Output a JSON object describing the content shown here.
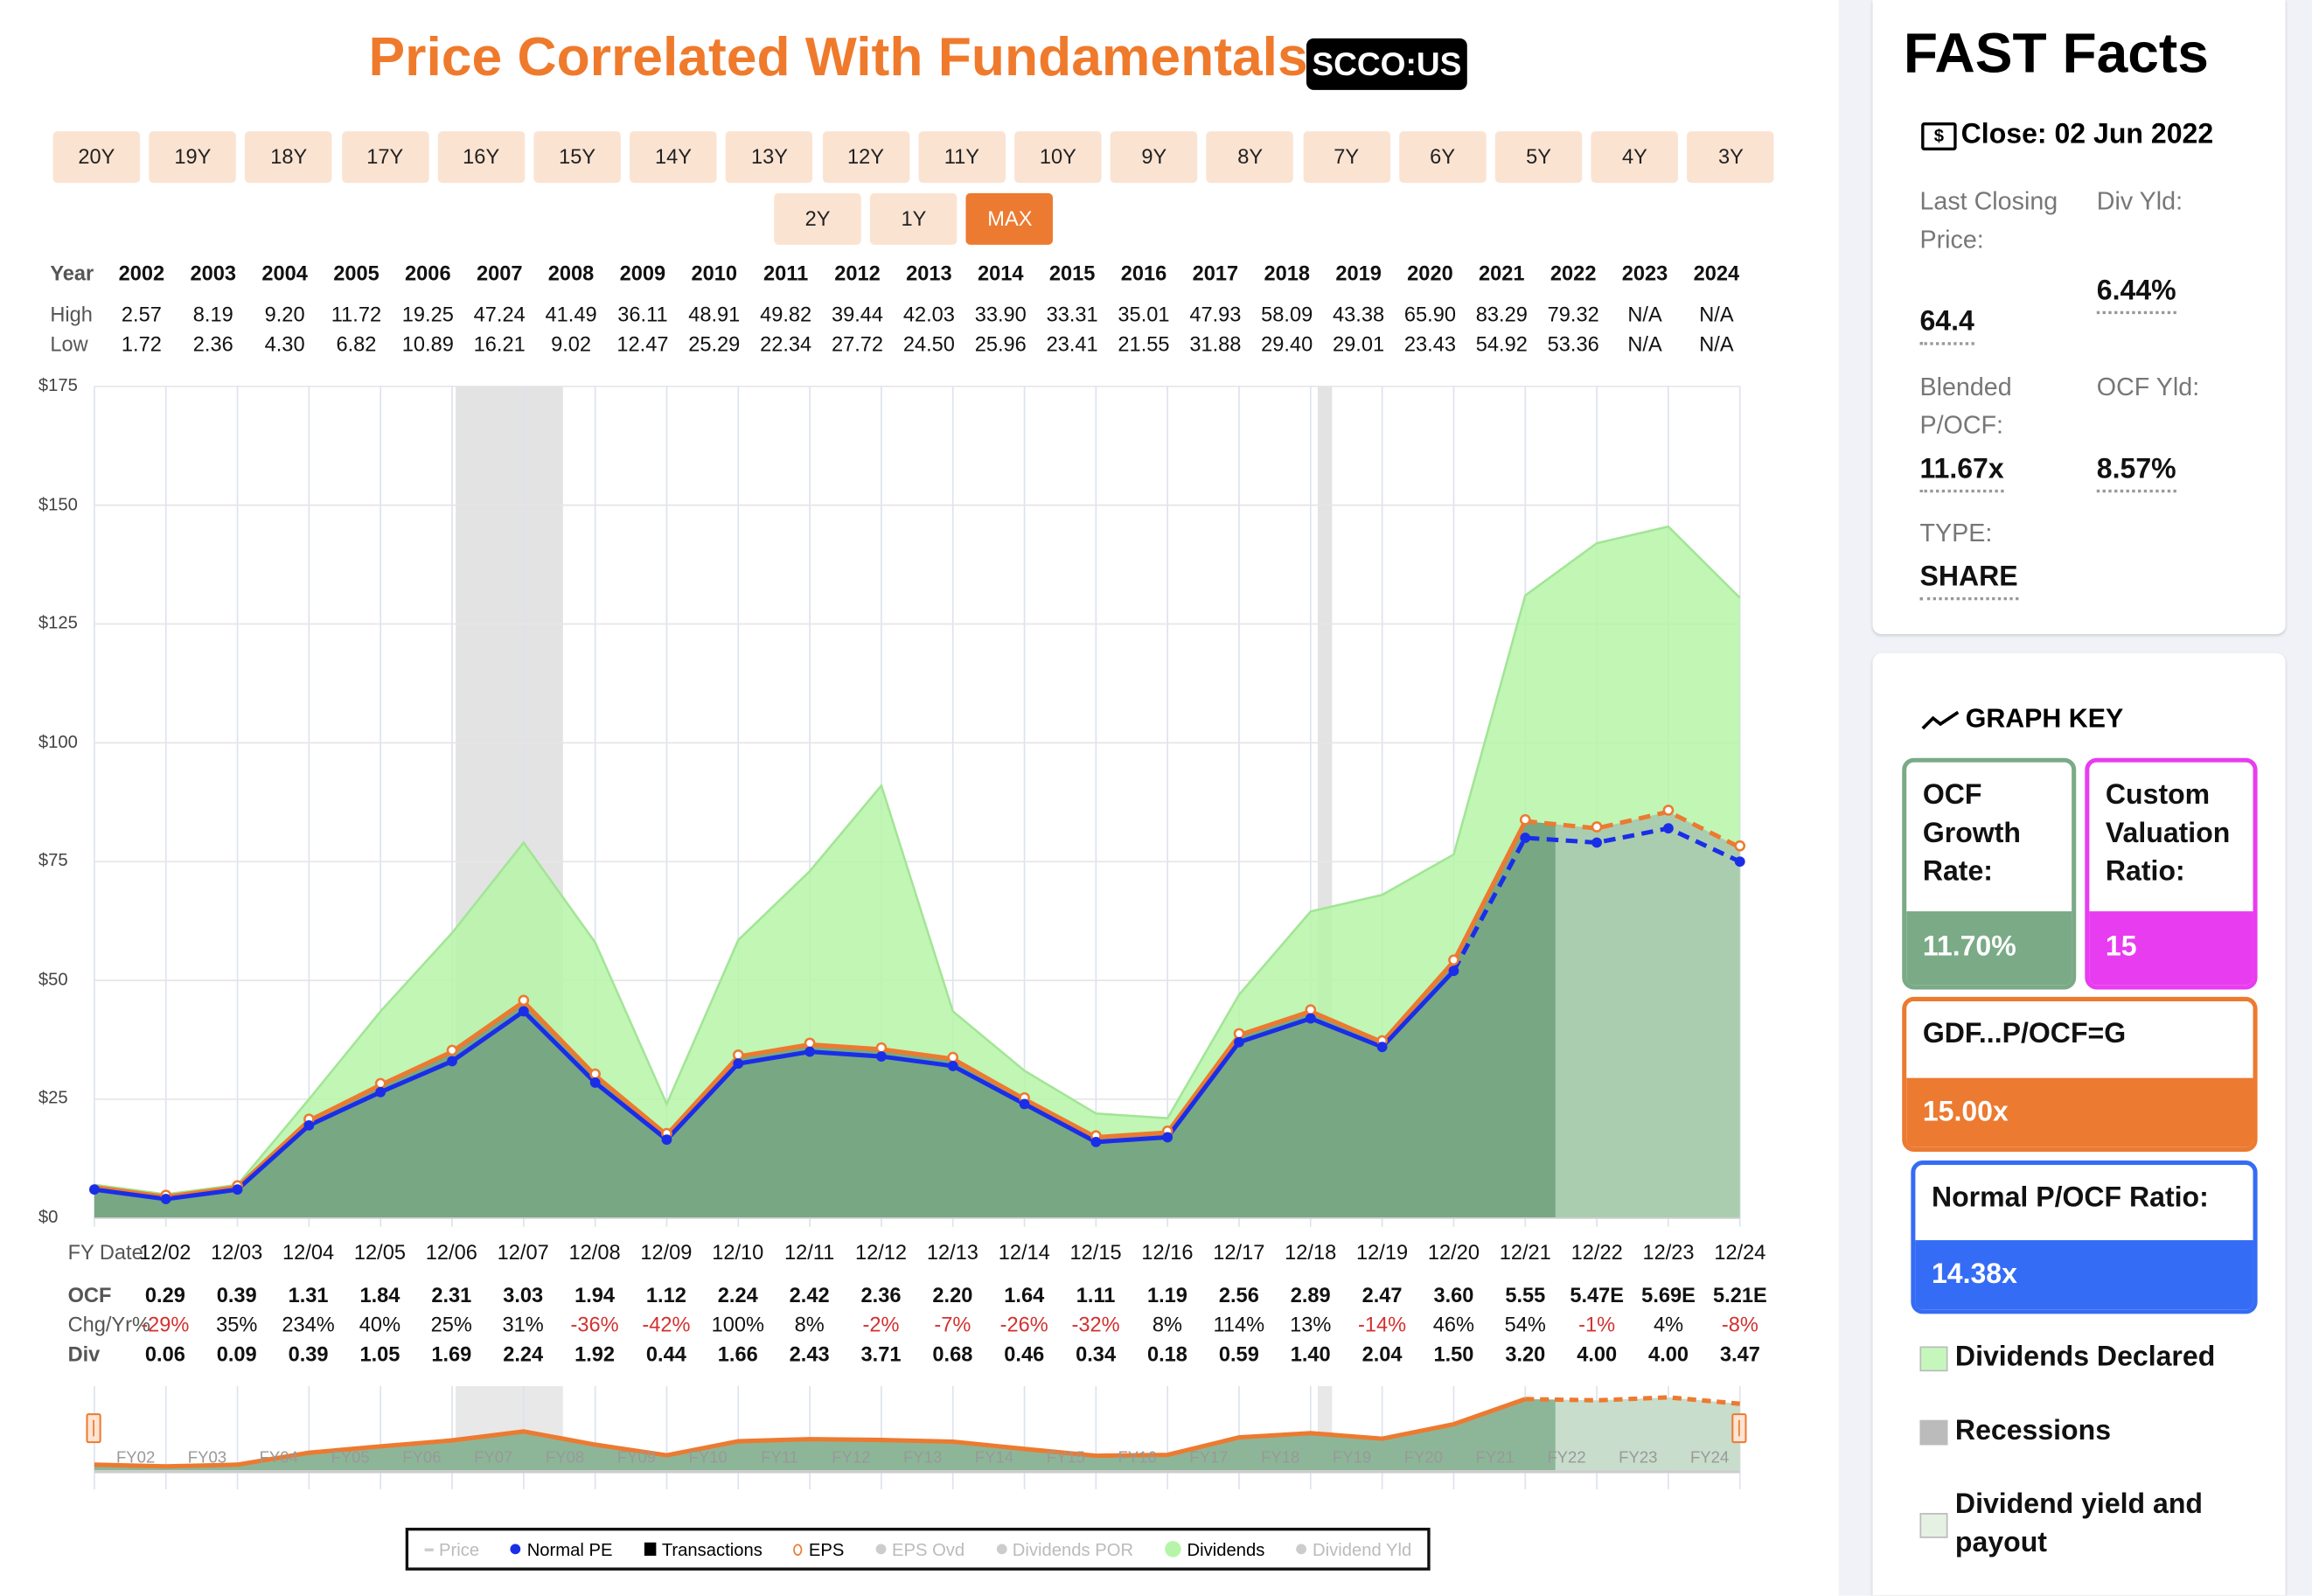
{
  "header": {
    "title": "Price Correlated With Fundamentals",
    "ticker": "SCCO:US"
  },
  "range_buttons": {
    "row1": [
      "20Y",
      "19Y",
      "18Y",
      "17Y",
      "16Y",
      "15Y",
      "14Y",
      "13Y",
      "12Y",
      "11Y",
      "10Y",
      "9Y",
      "8Y",
      "7Y",
      "6Y",
      "5Y",
      "4Y",
      "3Y"
    ],
    "row2": [
      "2Y",
      "1Y",
      "MAX"
    ],
    "active": "MAX"
  },
  "price_table": {
    "labels": {
      "year": "Year",
      "high": "High",
      "low": "Low"
    },
    "years": [
      "2002",
      "2003",
      "2004",
      "2005",
      "2006",
      "2007",
      "2008",
      "2009",
      "2010",
      "2011",
      "2012",
      "2013",
      "2014",
      "2015",
      "2016",
      "2017",
      "2018",
      "2019",
      "2020",
      "2021",
      "2022",
      "2023",
      "2024"
    ],
    "high": [
      "2.57",
      "8.19",
      "9.20",
      "11.72",
      "19.25",
      "47.24",
      "41.49",
      "36.11",
      "48.91",
      "49.82",
      "39.44",
      "42.03",
      "33.90",
      "33.31",
      "35.01",
      "47.93",
      "58.09",
      "43.38",
      "65.90",
      "83.29",
      "79.32",
      "N/A",
      "N/A"
    ],
    "low": [
      "1.72",
      "2.36",
      "4.30",
      "6.82",
      "10.89",
      "16.21",
      "9.02",
      "12.47",
      "25.29",
      "22.34",
      "27.72",
      "24.50",
      "25.96",
      "23.41",
      "21.55",
      "31.88",
      "29.40",
      "29.01",
      "23.43",
      "54.92",
      "53.36",
      "N/A",
      "N/A"
    ]
  },
  "fundamentals_table": {
    "labels": {
      "fy_date": "FY Date",
      "ocf": "OCF",
      "chg": "Chg/Yr%",
      "div": "Div"
    },
    "fy_dates": [
      "12/02",
      "12/03",
      "12/04",
      "12/05",
      "12/06",
      "12/07",
      "12/08",
      "12/09",
      "12/10",
      "12/11",
      "12/12",
      "12/13",
      "12/14",
      "12/15",
      "12/16",
      "12/17",
      "12/18",
      "12/19",
      "12/20",
      "12/21",
      "12/22",
      "12/23",
      "12/24"
    ],
    "ocf": [
      "0.29",
      "0.39",
      "1.31",
      "1.84",
      "2.31",
      "3.03",
      "1.94",
      "1.12",
      "2.24",
      "2.42",
      "2.36",
      "2.20",
      "1.64",
      "1.11",
      "1.19",
      "2.56",
      "2.89",
      "2.47",
      "3.60",
      "5.55",
      "5.47E",
      "5.69E",
      "5.21E"
    ],
    "chg": [
      "-29%",
      "35%",
      "234%",
      "40%",
      "25%",
      "31%",
      "-36%",
      "-42%",
      "100%",
      "8%",
      "-2%",
      "-7%",
      "-26%",
      "-32%",
      "8%",
      "114%",
      "13%",
      "-14%",
      "46%",
      "54%",
      "-1%",
      "4%",
      "-8%"
    ],
    "div": [
      "0.06",
      "0.09",
      "0.39",
      "1.05",
      "1.69",
      "2.24",
      "1.92",
      "0.44",
      "1.66",
      "2.43",
      "3.71",
      "0.68",
      "0.46",
      "0.34",
      "0.18",
      "0.59",
      "1.40",
      "2.04",
      "1.50",
      "3.20",
      "4.00",
      "4.00",
      "3.47"
    ]
  },
  "chart_data": {
    "type": "area",
    "title": "Price Correlated With Fundamentals",
    "ylabel": "",
    "ylim": [
      0,
      175
    ],
    "yticks": [
      "$0",
      "$25",
      "$50",
      "$75",
      "$100",
      "$125",
      "$150",
      "$175"
    ],
    "ytick_values": [
      0,
      25,
      50,
      75,
      100,
      125,
      150,
      175
    ],
    "x_note_first_point_precedes": "12/02",
    "forecast_start_index": 21,
    "recessions": [
      [
        5.05,
        6.55
      ],
      [
        17.1,
        17.3
      ]
    ],
    "series": [
      {
        "name": "Dividends",
        "color": "#b6f5a8",
        "values": [
          7,
          5,
          7,
          25,
          43.5,
          60,
          79,
          58,
          24,
          58.5,
          73,
          91,
          43.5,
          31,
          22,
          21,
          47,
          64.5,
          68,
          76.5,
          131,
          142,
          145.5,
          130.5
        ]
      },
      {
        "name": "EPS",
        "color": "#ec7a30",
        "values": [
          6.5,
          4.5,
          6.5,
          20.5,
          28,
          35,
          45.5,
          30,
          17.5,
          34,
          36.5,
          35.5,
          33.5,
          25,
          17,
          18,
          38.5,
          43.5,
          37,
          54,
          83.5,
          82,
          85.5,
          78
        ]
      },
      {
        "name": "Normal PE",
        "color": "#1a2ee8",
        "values": [
          6,
          4,
          6,
          19.5,
          26.5,
          33,
          43.5,
          28.5,
          16.5,
          32.5,
          35,
          34,
          32,
          24,
          16,
          17,
          37,
          42,
          36,
          52,
          80,
          79,
          82,
          75
        ]
      }
    ],
    "navigator_labels": [
      "FY02",
      "FY03",
      "FY04",
      "FY05",
      "FY06",
      "FY07",
      "FY08",
      "FY09",
      "FY10",
      "FY11",
      "FY12",
      "FY13",
      "FY14",
      "FY15",
      "FY16",
      "FY17",
      "FY18",
      "FY19",
      "FY20",
      "FY21",
      "FY22",
      "FY23",
      "FY24"
    ],
    "legend": [
      {
        "label": "Price",
        "active": false,
        "marker": "dash",
        "color": "#ccc"
      },
      {
        "label": "Normal PE",
        "active": true,
        "marker": "dot",
        "color": "#1a2ee8"
      },
      {
        "label": "Transactions",
        "active": true,
        "marker": "square",
        "color": "#000"
      },
      {
        "label": "EPS",
        "active": true,
        "marker": "ring",
        "color": "#ec7a30"
      },
      {
        "label": "EPS Ovd",
        "active": false,
        "marker": "dot",
        "color": "#ccc"
      },
      {
        "label": "Dividends POR",
        "active": false,
        "marker": "dot",
        "color": "#ccc"
      },
      {
        "label": "Dividends",
        "active": true,
        "marker": "bigdot",
        "color": "#b6f5a8"
      },
      {
        "label": "Dividend Yld",
        "active": false,
        "marker": "dot",
        "color": "#ccc"
      }
    ]
  },
  "fast_facts": {
    "title": "FAST Facts",
    "close": "Close: 02 Jun 2022",
    "last_price_label": "Last Closing Price:",
    "last_price": "64.4",
    "div_yld_label": "Div Yld:",
    "div_yld": "6.44%",
    "blended_label": "Blended P/OCF:",
    "blended": "11.67x",
    "ocf_yld_label": "OCF Yld:",
    "ocf_yld": "8.57%",
    "type_label": "TYPE:",
    "type": "SHARE"
  },
  "graph_key": {
    "title": "GRAPH KEY",
    "ocf_growth_label": "OCF Growth Rate:",
    "ocf_growth": "11.70%",
    "custom_label": "Custom Valuation Ratio:",
    "custom": "15",
    "gdf_label": "GDF...P/OCF=G",
    "gdf": "15.00x",
    "normal_label": "Normal P/OCF Ratio:",
    "normal": "14.38x",
    "colors": {
      "ocf": "#7aaa86",
      "custom": "#e83cf0",
      "gdf": "#ec7a30",
      "normal": "#356cf5"
    },
    "items": [
      "Dividends Declared",
      "Recessions",
      "Dividend yield and payout"
    ]
  }
}
